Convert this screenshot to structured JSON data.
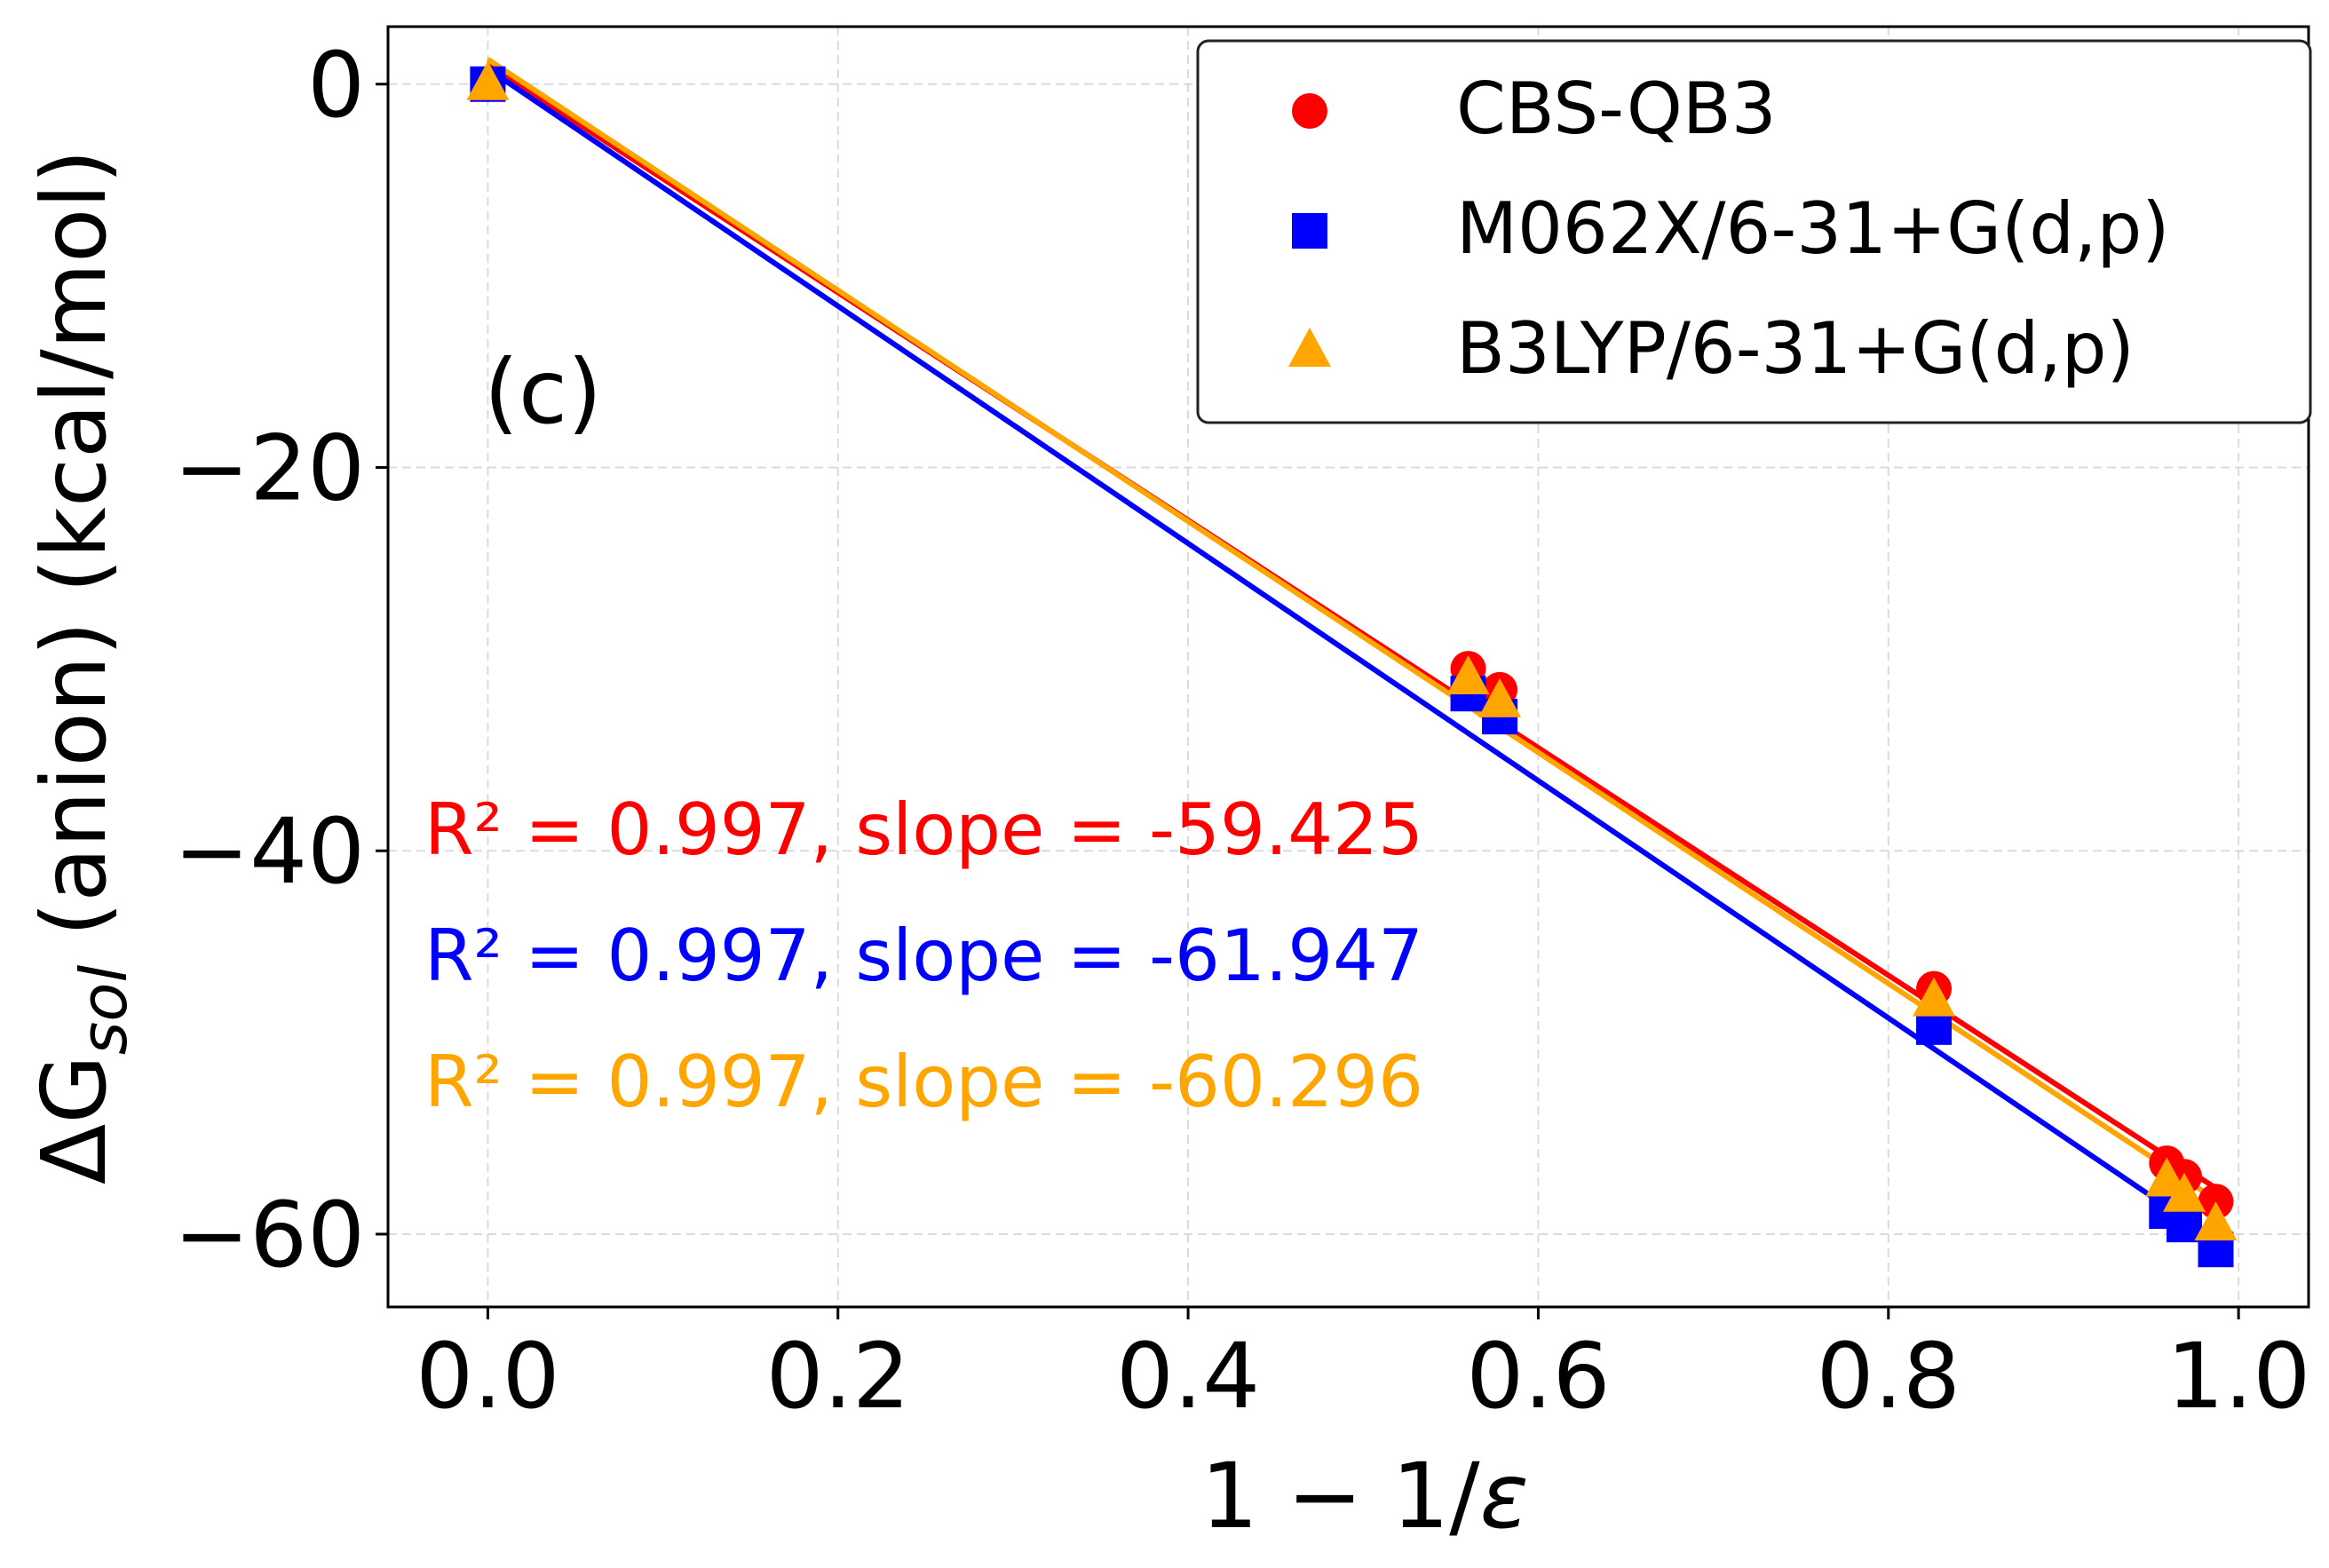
{
  "chart_data": {
    "type": "scatter",
    "title": "",
    "panel_label": "(c)",
    "xlabel": {
      "prefix": "1 − 1/",
      "epsilon": "ε"
    },
    "ylabel": {
      "delta": "ΔG",
      "subscript": "sol",
      "rest": " (anion) (kcal/mol)"
    },
    "xlim": [
      -0.057,
      1.04
    ],
    "ylim": [
      -63.8,
      3.0
    ],
    "grid": true,
    "x_ticks": [
      0.0,
      0.2,
      0.4,
      0.6,
      0.8,
      1.0
    ],
    "x_tick_labels": [
      "0.0",
      "0.2",
      "0.4",
      "0.6",
      "0.8",
      "1.0"
    ],
    "y_ticks": [
      0,
      -20,
      -40,
      -60
    ],
    "y_tick_labels": [
      "0",
      "−20",
      "−40",
      "−60"
    ],
    "legend_position": "top-right",
    "series": [
      {
        "name": "CBS-QB3",
        "marker": "circle",
        "color": "#ff0000",
        "x": [
          0.0,
          0.56,
          0.578,
          0.826,
          0.959,
          0.969,
          0.987
        ],
        "y": [
          0.0,
          -30.5,
          -31.6,
          -47.2,
          -56.3,
          -57.0,
          -58.3
        ],
        "fit": {
          "x": [
            0.0,
            0.987
          ],
          "y": [
            1.0,
            -57.6
          ]
        },
        "annotation": "R² = 0.997, slope = -59.425"
      },
      {
        "name": "M062X/6-31+G(d,p)",
        "marker": "square",
        "color": "#0000ff",
        "x": [
          0.0,
          0.56,
          0.578,
          0.826,
          0.959,
          0.969,
          0.987
        ],
        "y": [
          0.0,
          -31.8,
          -33.0,
          -49.2,
          -58.8,
          -59.5,
          -60.8
        ],
        "fit": {
          "x": [
            0.0,
            0.987
          ],
          "y": [
            0.8,
            -60.3
          ]
        },
        "annotation": "R² = 0.997, slope = -61.947"
      },
      {
        "name": "B3LYP/6-31+G(d,p)",
        "marker": "triangle",
        "color": "#ffa500",
        "x": [
          0.0,
          0.56,
          0.578,
          0.826,
          0.959,
          0.969,
          0.987
        ],
        "y": [
          0.0,
          -31.0,
          -32.2,
          -47.8,
          -57.2,
          -58.0,
          -59.5
        ],
        "fit": {
          "x": [
            0.0,
            0.987
          ],
          "y": [
            1.3,
            -58.2
          ]
        },
        "annotation": "R² = 0.997, slope = -60.296"
      }
    ]
  }
}
